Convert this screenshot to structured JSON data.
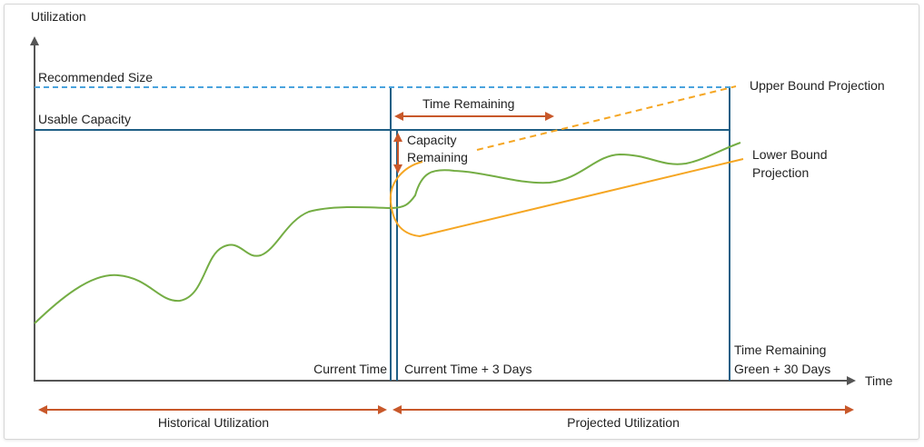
{
  "axes": {
    "y_label": "Utilization",
    "x_label": "Time"
  },
  "labels": {
    "recommended_size": "Recommended Size",
    "usable_capacity": "Usable Capacity",
    "time_remaining": "Time Remaining",
    "capacity_remaining": [
      "Capacity",
      "Remaining"
    ],
    "upper_bound_projection": "Upper Bound Projection",
    "lower_bound_projection": [
      "Lower Bound",
      "Projection"
    ],
    "current_time": "Current Time",
    "current_time_plus_3_days": "Current Time + 3 Days",
    "time_remaining_green": [
      "Time Remaining",
      "Green + 30 Days"
    ],
    "historical_utilization": "Historical Utilization",
    "projected_utilization": "Projected Utilization"
  },
  "colors": {
    "axis": "#555555",
    "capacity_line": "#1f5f86",
    "recommended_line": "#4aa3dd",
    "utilization_curve": "#74ad44",
    "projection": "#f5a623",
    "arrow": "#c8582a"
  }
}
